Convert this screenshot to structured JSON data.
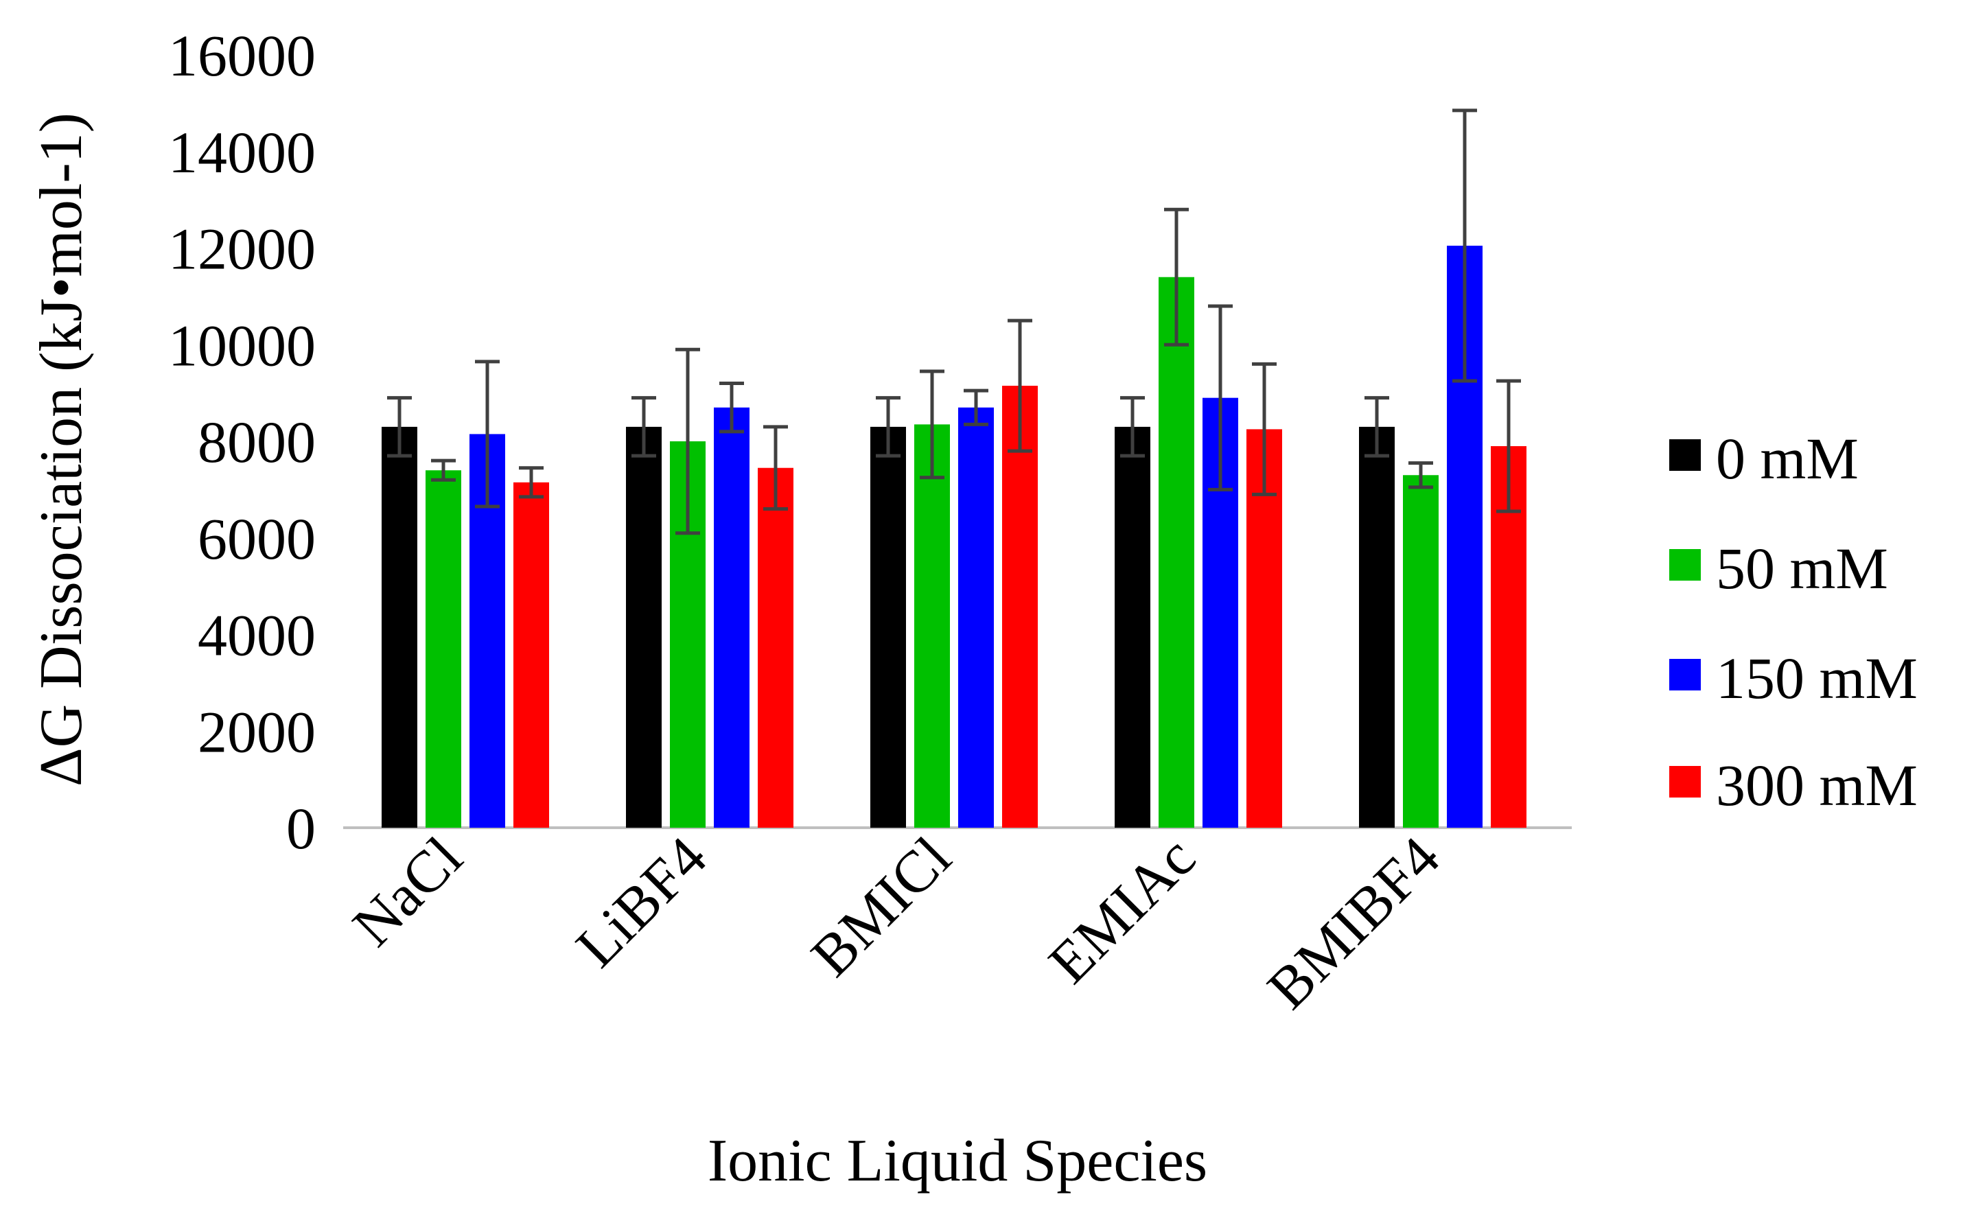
{
  "chart_data": {
    "type": "bar",
    "title": "",
    "xlabel": "Ionic Liquid Species",
    "ylabel": "ΔG Dissociation (kJ•mol-1)",
    "ylim": [
      0,
      16000
    ],
    "yticks": [
      0,
      2000,
      4000,
      6000,
      8000,
      10000,
      12000,
      14000,
      16000
    ],
    "grid": false,
    "legend_position": "right",
    "categories": [
      "NaCl",
      "LiBF4",
      "BMICl",
      "EMIAc",
      "BMIBF4"
    ],
    "series": [
      {
        "name": "0 mM",
        "color": "#000000",
        "values": [
          8300,
          8300,
          8300,
          8300,
          8300
        ],
        "errors": [
          600,
          600,
          600,
          600,
          600
        ]
      },
      {
        "name": "50 mM",
        "color": "#00c000",
        "values": [
          7400,
          8000,
          8350,
          11400,
          7300
        ],
        "errors": [
          200,
          1900,
          1100,
          1400,
          250
        ]
      },
      {
        "name": "150 mM",
        "color": "#0000ff",
        "values": [
          8150,
          8700,
          8700,
          8900,
          12050
        ],
        "errors": [
          1500,
          500,
          350,
          1900,
          2800
        ]
      },
      {
        "name": "300 mM",
        "color": "#ff0000",
        "values": [
          7150,
          7450,
          9150,
          8250,
          7900
        ],
        "errors": [
          300,
          850,
          1350,
          1350,
          1350
        ]
      }
    ],
    "error_bar_color": "#404040"
  }
}
